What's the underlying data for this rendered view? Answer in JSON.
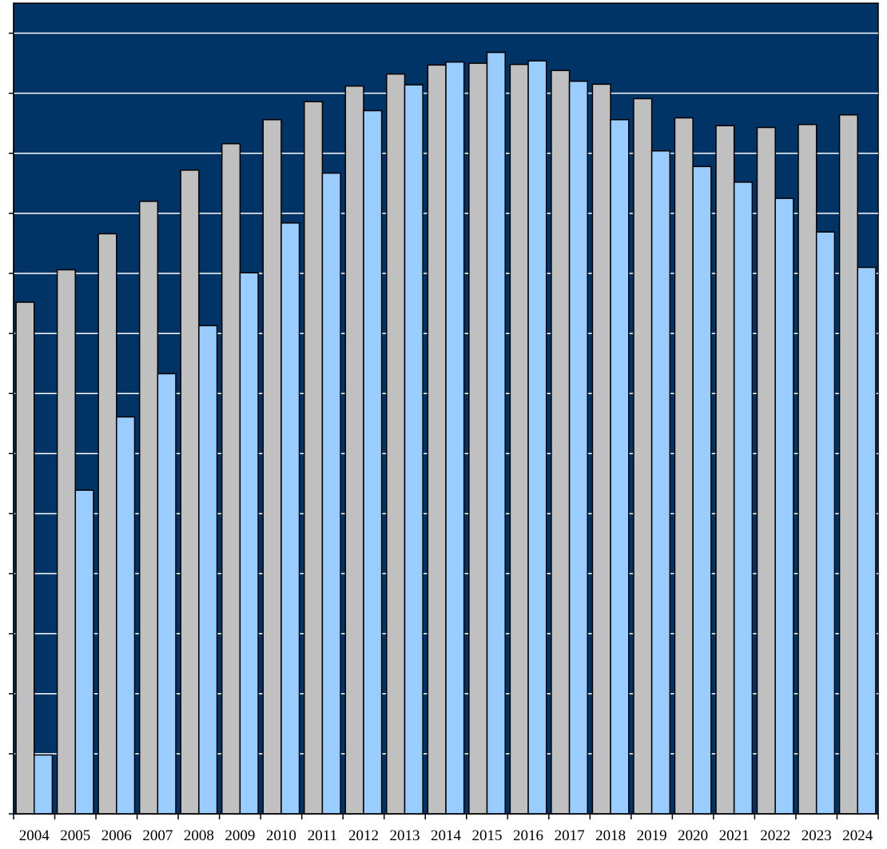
{
  "chart_data": {
    "type": "bar",
    "categories": [
      "2004",
      "2005",
      "2006",
      "2007",
      "2008",
      "2009",
      "2010",
      "2011",
      "2012",
      "2013",
      "2014",
      "2015",
      "2016",
      "2017",
      "2018",
      "2019",
      "2020",
      "2021",
      "2022",
      "2023",
      "2024"
    ],
    "series": [
      {
        "values": [
          8.52,
          9.06,
          9.66,
          10.2,
          10.72,
          11.16,
          11.56,
          11.86,
          12.12,
          12.32,
          12.47,
          12.5,
          12.48,
          12.38,
          12.15,
          11.91,
          11.59,
          11.46,
          11.43,
          11.48,
          11.64
        ]
      },
      {
        "values": [
          0.98,
          5.39,
          6.61,
          7.33,
          8.13,
          9.01,
          9.84,
          10.67,
          11.71,
          12.14,
          12.52,
          12.68,
          12.54,
          12.2,
          11.56,
          11.04,
          10.78,
          10.52,
          10.25,
          9.69,
          9.1
        ]
      }
    ],
    "ylim": [
      0,
      13.5
    ],
    "ytick_step": 1,
    "colors": {
      "plot_bg": "#003366",
      "series_1": "#C0C0C0",
      "series_2": "#99CCFF",
      "gridline": "#FFFFFF",
      "bar_edge": "#000000"
    },
    "grid": true,
    "legend": "none"
  }
}
